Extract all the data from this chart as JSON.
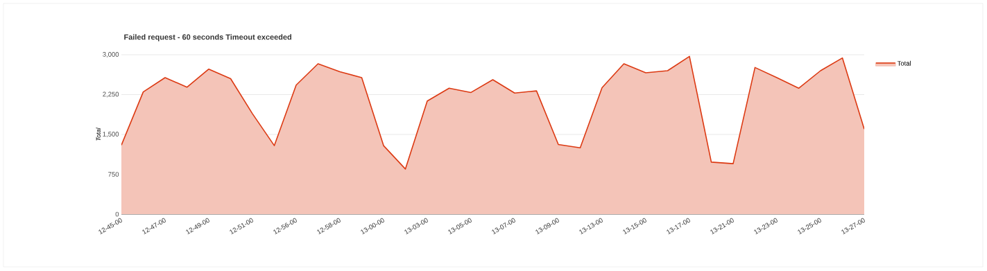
{
  "chart_data": {
    "type": "area",
    "title": "Failed request - 60 seconds Timeout exceeded",
    "ylabel": "Total",
    "categories": [
      "12-45-00",
      null,
      "12-47-00",
      null,
      "12-49-00",
      null,
      "12-51-00",
      null,
      "12-56-00",
      null,
      "12-58-00",
      null,
      "13-00-00",
      null,
      "13-03-00",
      null,
      "13-05-00",
      null,
      "13-07-00",
      null,
      "13-09-00",
      null,
      "13-13-00",
      null,
      "13-15-00",
      null,
      "13-17-00",
      null,
      "13-21-00",
      null,
      "13-23-00",
      null,
      "13-25-00",
      null,
      "13-27-00"
    ],
    "series": [
      {
        "name": "Total",
        "color": "#dc3912",
        "values": [
          1300,
          2300,
          2570,
          2390,
          2730,
          2550,
          1890,
          1290,
          2430,
          2830,
          2680,
          2570,
          1290,
          850,
          2130,
          2370,
          2290,
          2530,
          2280,
          2320,
          1310,
          1250,
          2380,
          2830,
          2660,
          2700,
          2970,
          980,
          950,
          2760,
          2570,
          2370,
          2700,
          2940,
          1600
        ]
      }
    ],
    "ylim": [
      0,
      3000
    ],
    "yticks": [
      0,
      750,
      {
        "value": 1500,
        "label": "1,500"
      },
      {
        "value": 2250,
        "label": "2,250"
      },
      {
        "value": 3000,
        "label": "3,000"
      }
    ],
    "grid": "y",
    "legend": "top right"
  }
}
